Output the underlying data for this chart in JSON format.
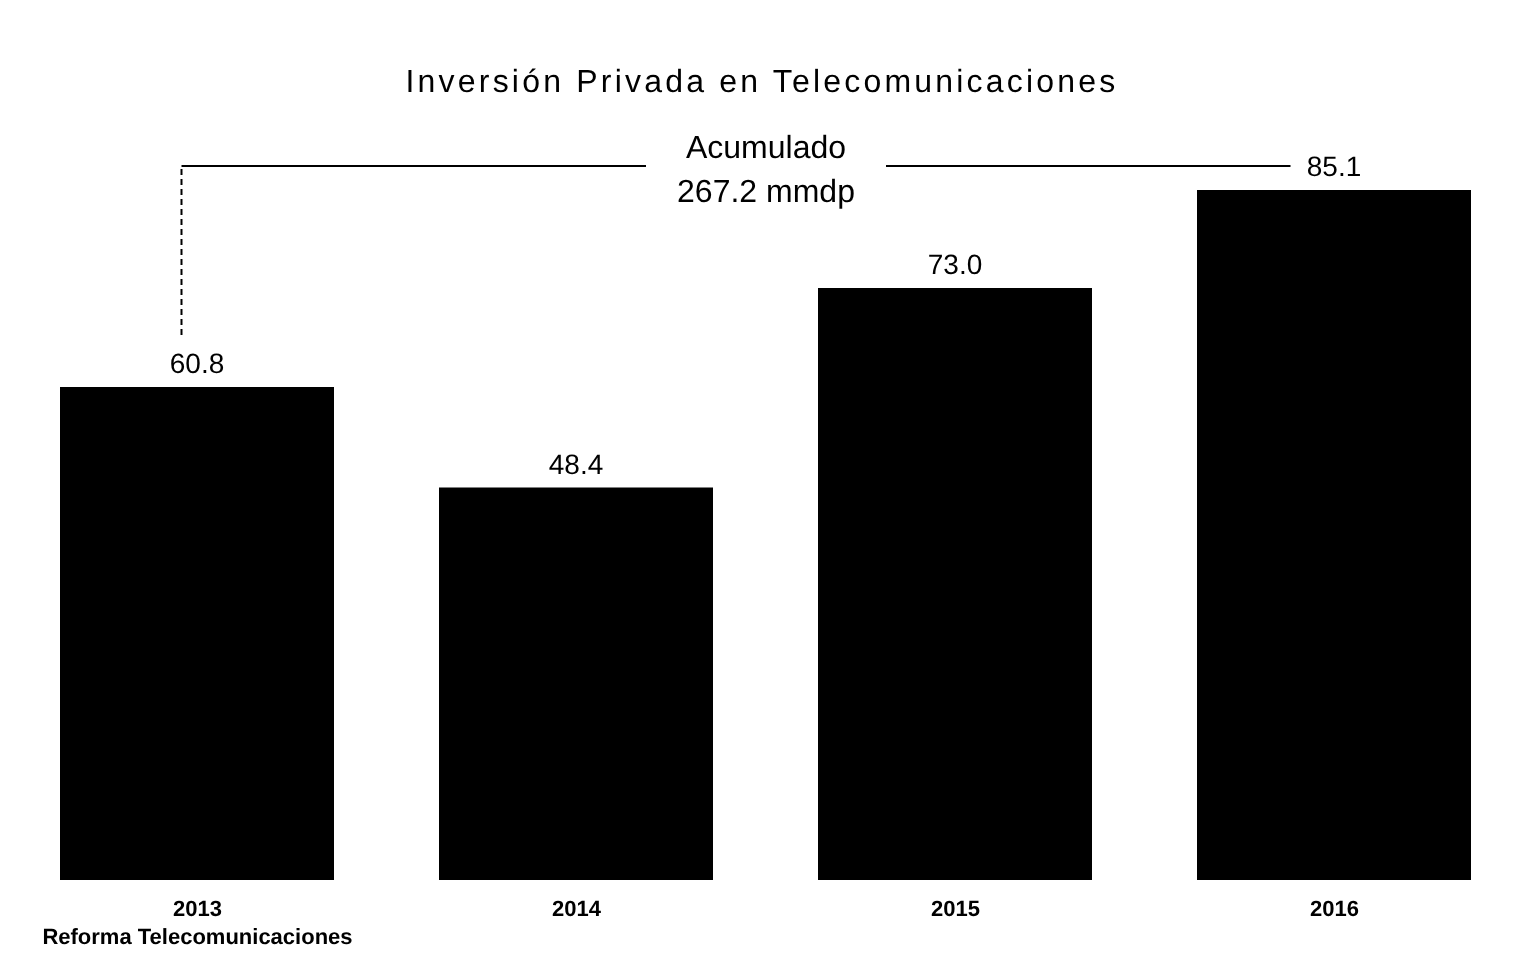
{
  "chart_data": {
    "type": "bar",
    "title": "Inversión Privada en Telecomunicaciones",
    "categories": [
      "2013",
      "2014",
      "2015",
      "2016"
    ],
    "values": [
      60.8,
      48.4,
      73.0,
      85.1
    ],
    "color": "#000000",
    "value_labels": [
      "60.8",
      "48.4",
      "73.0",
      "85.1"
    ],
    "annotations": [
      "Acumulado 267.2 mmdp",
      "Reforma Telecomunicaciones"
    ]
  }
}
